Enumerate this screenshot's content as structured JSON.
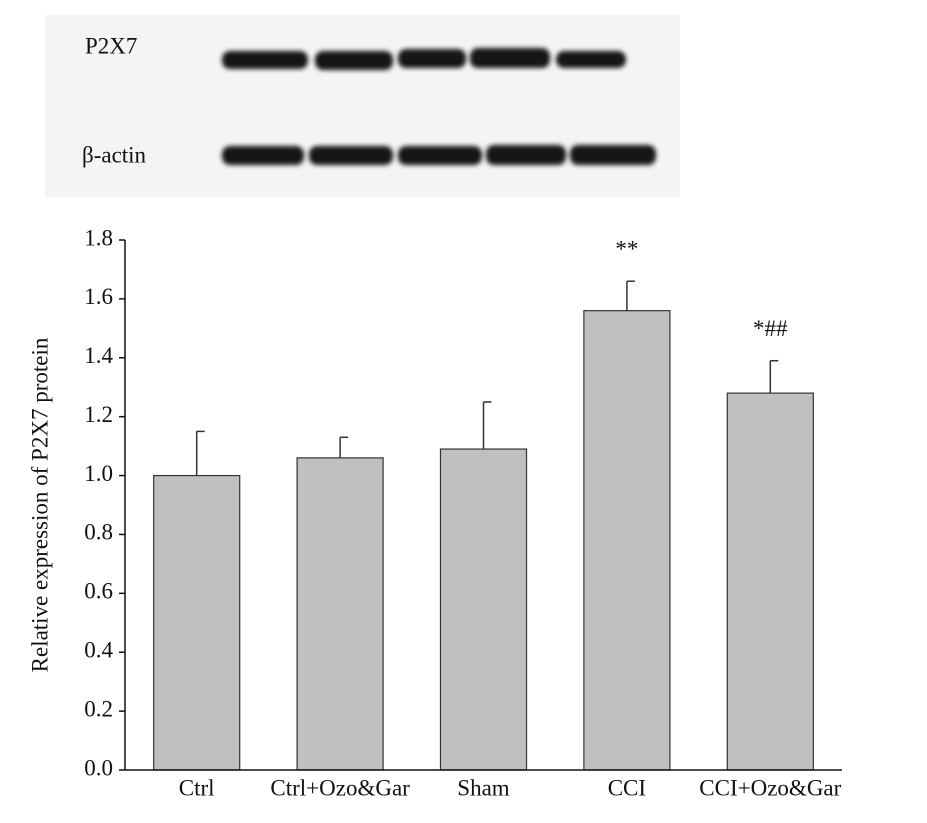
{
  "blot": {
    "rows": [
      "P2X7",
      "β-actin"
    ]
  },
  "chart_data": {
    "type": "bar",
    "y_label": "Relative expression of P2X7 protein",
    "categories": [
      "Ctrl",
      "Ctrl+Ozo&Gar",
      "Sham",
      "CCI",
      "CCI+Ozo&Gar"
    ],
    "values": [
      1.0,
      1.06,
      1.09,
      1.56,
      1.28
    ],
    "errors": [
      0.15,
      0.07,
      0.16,
      0.1,
      0.11
    ],
    "annotations": [
      null,
      null,
      null,
      "**",
      "*##"
    ],
    "color": "#c0c0c0",
    "ylim": [
      0,
      1.8
    ],
    "yticks": [
      {
        "value": 0,
        "label": "0.0"
      },
      0.2,
      0.4,
      0.6,
      0.8,
      {
        "value": 1,
        "label": "1.0"
      },
      1.2,
      1.4,
      1.6,
      1.8
    ]
  }
}
